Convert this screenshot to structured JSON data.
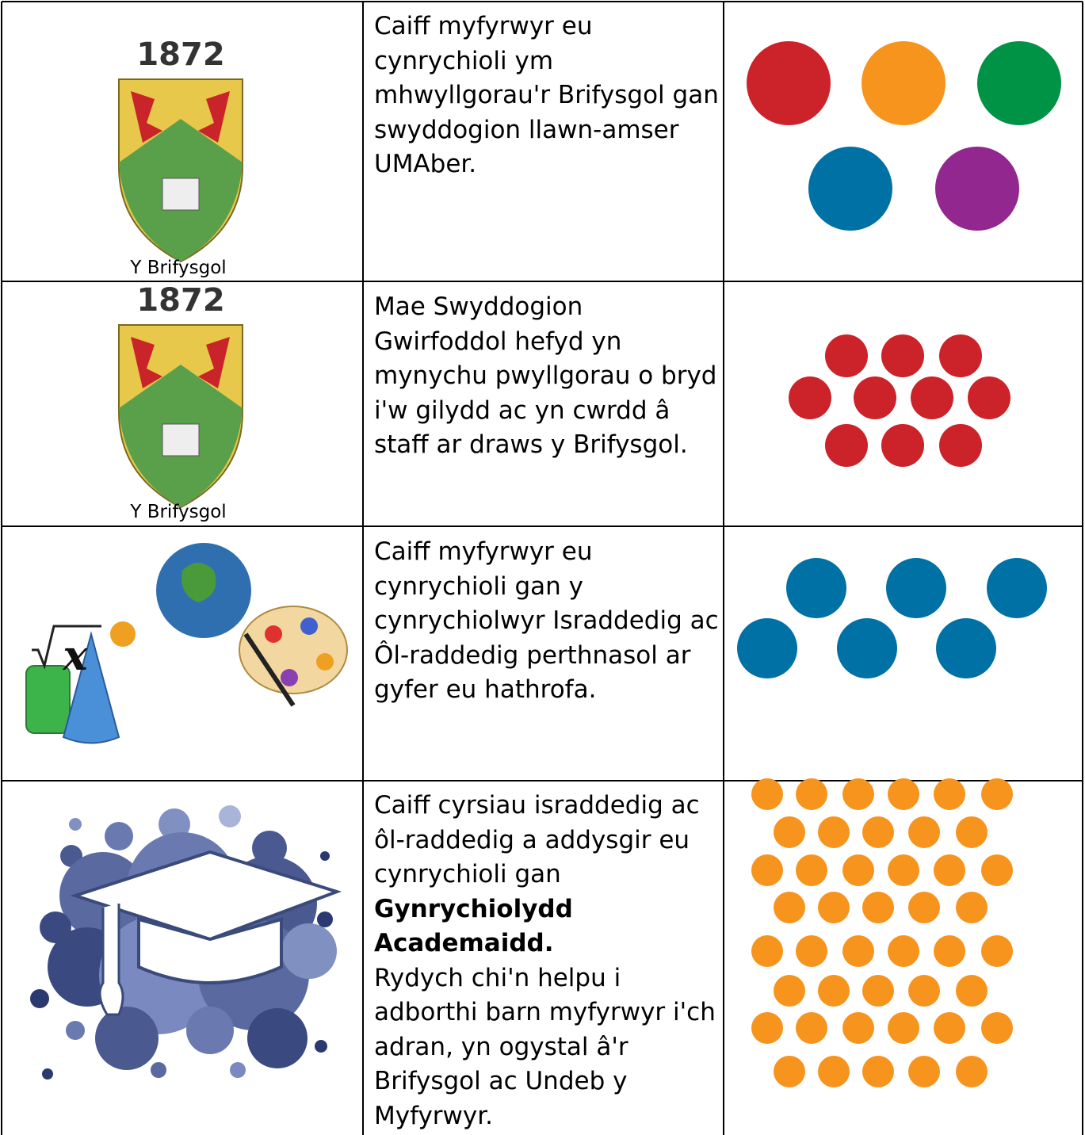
{
  "table": {
    "rows": [
      {
        "icon_text": "1872",
        "caption": "Y Brifysgol",
        "text": "Caiff myfyrwyr eu cynrychioli ym mhwyllgorau'r Brifysgol gan swyddogion llawn-amser UMAber."
      },
      {
        "icon_text": "1872",
        "caption": "Y Brifysgol",
        "text": "Mae Swyddogion Gwirfoddol hefyd yn mynychu pwyllgorau o bryd i'w gilydd ac yn cwrdd â staff ar draws y Brifysgol."
      },
      {
        "icon_text": "x",
        "text": "Caiff myfyrwyr eu cynrychioli gan y cynrychiolwyr Israddedig ac Ôl-raddedig perthnasol ar gyfer eu hathrofa."
      },
      {
        "text": [
          "Caiff cyrsiau israddedig ac ôl-raddedig a addysgir eu cynrychioli gan",
          "Gynrychiolydd Academaidd.",
          "Rydych chi'n helpu i adborthi barn myfyrwyr i'ch adran, yn ogystal â'r Brifysgol ac Undeb y Myfyrwyr."
        ]
      }
    ]
  }
}
